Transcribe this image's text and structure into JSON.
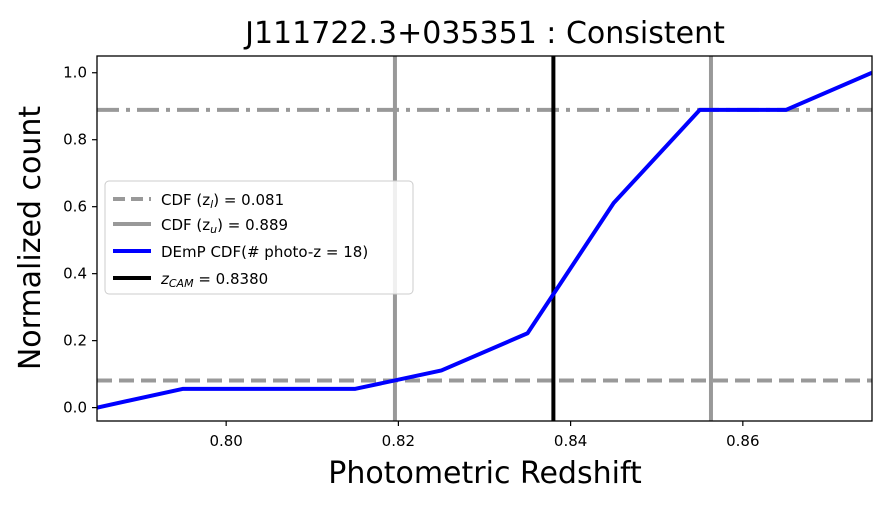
{
  "chart_data": {
    "type": "line",
    "title": "J111722.3+035351 : Consistent",
    "xlabel": "Photometric Redshift",
    "ylabel": "Normalized count",
    "xlim": [
      0.785,
      0.875
    ],
    "ylim": [
      -0.04,
      1.05
    ],
    "xticks": [
      0.8,
      0.82,
      0.84,
      0.86
    ],
    "xtick_labels": [
      "0.80",
      "0.82",
      "0.84",
      "0.86"
    ],
    "yticks": [
      0.0,
      0.2,
      0.4,
      0.6,
      0.8,
      1.0
    ],
    "ytick_labels": [
      "0.0",
      "0.2",
      "0.4",
      "0.6",
      "0.8",
      "1.0"
    ],
    "grid": false,
    "legend_position": "center-left",
    "series": [
      {
        "name": "DEmP CDF(# photo-z = 18)",
        "color": "#0000ff",
        "x": [
          0.785,
          0.795,
          0.805,
          0.815,
          0.825,
          0.835,
          0.845,
          0.855,
          0.865,
          0.875
        ],
        "y": [
          0.0,
          0.056,
          0.056,
          0.056,
          0.111,
          0.222,
          0.611,
          0.889,
          0.889,
          1.0
        ]
      }
    ],
    "hlines": [
      {
        "label_prefix": "CDF ",
        "label_math": "(z",
        "label_sub": "l",
        "label_close": ")",
        "label_value": " = 0.081",
        "y": 0.081,
        "style": "dashed",
        "color": "#999999"
      },
      {
        "label_prefix": "CDF ",
        "label_math": "(z",
        "label_sub": "u",
        "label_close": ")",
        "label_value": " = 0.889",
        "y": 0.889,
        "style": "dashdot",
        "color": "#999999"
      }
    ],
    "vlines": [
      {
        "x": 0.8196,
        "color": "#999999"
      },
      {
        "x": 0.8563,
        "color": "#999999"
      },
      {
        "label_math": "z",
        "label_sub": "CAM",
        "label_value": " = 0.8380",
        "x": 0.838,
        "color": "#000000"
      }
    ]
  }
}
